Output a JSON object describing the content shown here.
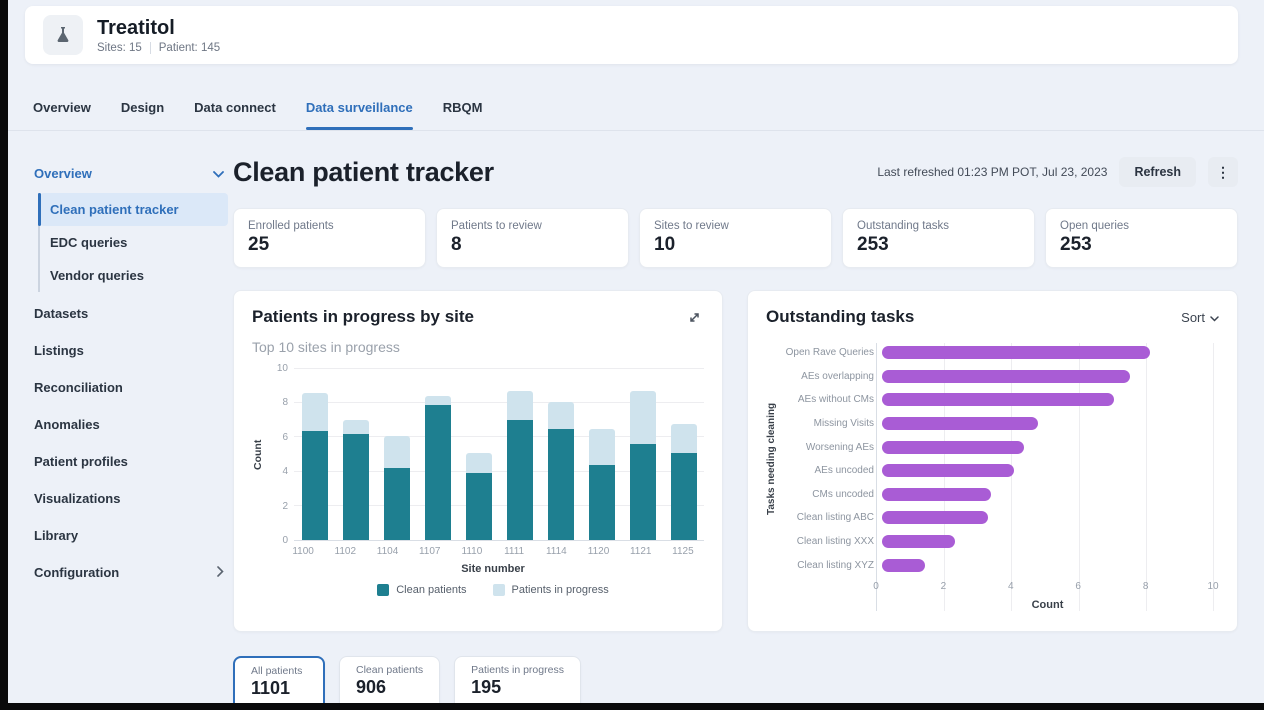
{
  "header": {
    "app_name": "Treatitol",
    "sites": "Sites: 15",
    "patients": "Patient: 145"
  },
  "tabs": [
    {
      "label": "Overview",
      "active": false
    },
    {
      "label": "Design",
      "active": false
    },
    {
      "label": "Data connect",
      "active": false
    },
    {
      "label": "Data surveillance",
      "active": true
    },
    {
      "label": "RBQM",
      "active": false
    }
  ],
  "sidebar": {
    "section": {
      "label": "Overview",
      "expanded": true
    },
    "sub_items": [
      {
        "label": "Clean patient tracker",
        "active": true
      },
      {
        "label": "EDC queries",
        "active": false
      },
      {
        "label": "Vendor queries",
        "active": false
      }
    ],
    "items": [
      {
        "label": "Datasets"
      },
      {
        "label": "Listings"
      },
      {
        "label": "Reconciliation"
      },
      {
        "label": "Anomalies"
      },
      {
        "label": "Patient profiles"
      },
      {
        "label": "Visualizations"
      },
      {
        "label": "Library"
      },
      {
        "label": "Configuration",
        "has_submenu": true
      }
    ]
  },
  "page": {
    "title": "Clean patient tracker",
    "last_refreshed": "Last refreshed 01:23 PM POT, Jul 23, 2023",
    "refresh_label": "Refresh"
  },
  "kpis": [
    {
      "label": "Enrolled patients",
      "value": "25"
    },
    {
      "label": "Patients to review",
      "value": "8"
    },
    {
      "label": "Sites to review",
      "value": "10"
    },
    {
      "label": "Outstanding tasks",
      "value": "253"
    },
    {
      "label": "Open queries",
      "value": "253"
    }
  ],
  "chart_data": [
    {
      "type": "bar",
      "stacked": true,
      "title": "Patients in progress by site",
      "subtitle": "Top 10 sites in progress",
      "categories": [
        "1100",
        "1102",
        "1104",
        "1107",
        "1110",
        "1111",
        "1114",
        "1120",
        "1121",
        "1125"
      ],
      "series": [
        {
          "name": "Clean patients",
          "color": "#1e7f90",
          "values": [
            6.4,
            6.2,
            4.2,
            7.9,
            3.9,
            7.0,
            6.5,
            4.4,
            5.6,
            5.1
          ]
        },
        {
          "name": "Patients in progress",
          "color": "#cfe3ed",
          "values": [
            2.2,
            0.8,
            1.9,
            0.5,
            1.2,
            1.7,
            1.6,
            2.1,
            3.1,
            1.7
          ]
        }
      ],
      "xlabel": "Site number",
      "ylabel": "Count",
      "ylim": [
        0,
        10
      ],
      "yticks": [
        0,
        2,
        4,
        6,
        8,
        10
      ],
      "grid": true,
      "legend_position": "bottom"
    },
    {
      "type": "bar",
      "orientation": "horizontal",
      "title": "Outstanding tasks",
      "sort_label": "Sort",
      "categories": [
        "Open Rave Queries",
        "AEs overlapping",
        "AEs without CMs",
        "Missing Visits",
        "Worsening AEs",
        "AEs uncoded",
        "CMs uncoded",
        "Clean listing ABC",
        "Clean listing XXX",
        "Clean listing XYZ"
      ],
      "values": [
        8.1,
        7.5,
        7.0,
        4.7,
        4.3,
        4.0,
        3.3,
        3.2,
        2.2,
        1.3
      ],
      "color": "#a95cd5",
      "xlabel": "Count",
      "ylabel": "Tasks needing cleaning",
      "xlim": [
        0,
        10
      ],
      "xticks": [
        0,
        2,
        4,
        6,
        8,
        10
      ],
      "grid": true
    }
  ],
  "filters": [
    {
      "label": "All patients",
      "value": "1101",
      "selected": true
    },
    {
      "label": "Clean patients",
      "value": "906",
      "selected": false
    },
    {
      "label": "Patients in progress",
      "value": "195",
      "selected": false
    }
  ],
  "colors": {
    "accent_blue": "#2f6fba",
    "teal_dark": "#1e7f90",
    "blue_light": "#cfe3ed",
    "purple": "#a95cd5",
    "page_bg": "#edf1f8"
  }
}
